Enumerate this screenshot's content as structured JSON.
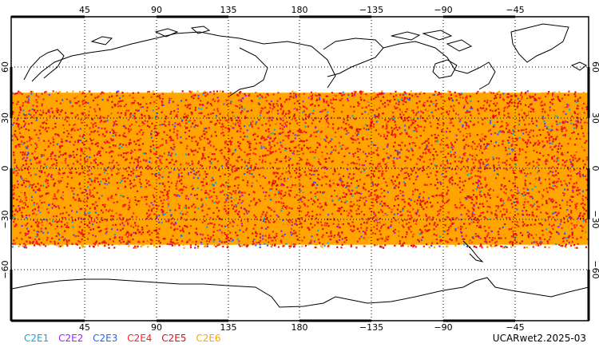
{
  "map": {
    "lon_ticks_top": [
      "45",
      "90",
      "135",
      "180",
      "−135",
      "−90",
      "−45"
    ],
    "lon_ticks_bottom": [
      "45",
      "90",
      "135",
      "180",
      "−135",
      "−90",
      "−45"
    ],
    "lat_ticks_left": [
      "60",
      "30",
      "0",
      "−30",
      "−60"
    ],
    "lat_ticks_right": [
      "60",
      "30",
      "0",
      "−30",
      "−60"
    ],
    "lon_range": [
      0,
      360
    ],
    "lat_range": [
      -90,
      90
    ],
    "occultation_band_lat": [
      -45,
      45
    ],
    "land_outline_color": "#000000",
    "grid": "dotted"
  },
  "legend": [
    {
      "label": "C2E1",
      "color": "#00b0e0"
    },
    {
      "label": "C2E2",
      "color": "#a020f0"
    },
    {
      "label": "C2E3",
      "color": "#1e64ff"
    },
    {
      "label": "C2E4",
      "color": "#ff2020"
    },
    {
      "label": "C2E5",
      "color": "#e01010"
    },
    {
      "label": "C2E6",
      "color": "#ffa500"
    }
  ],
  "credit": "UCARwet2.2025-03"
}
